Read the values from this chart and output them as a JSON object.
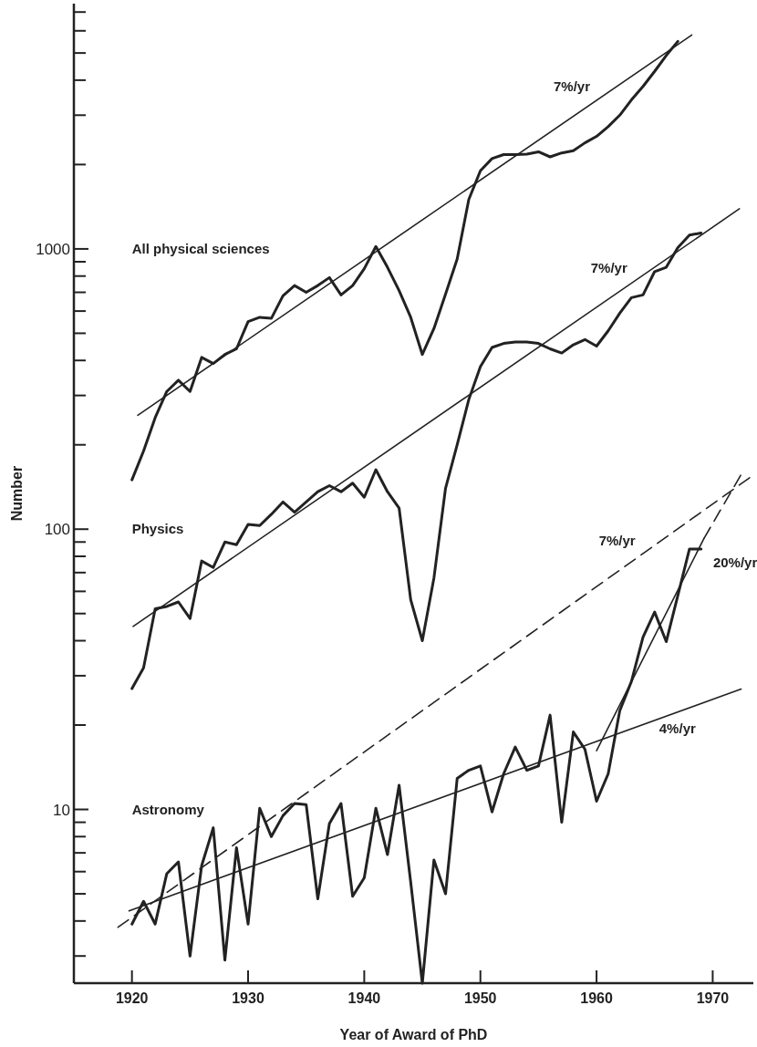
{
  "chart_data": {
    "type": "line",
    "xlabel": "Year of Award of PhD",
    "ylabel": "Number",
    "log": "y",
    "xlim": [
      1915,
      1973.5
    ],
    "xticks": [
      1920,
      1930,
      1940,
      1950,
      1960,
      1970
    ],
    "ylim": [
      2.4,
      7500
    ],
    "yticks": [
      {
        "value": 3,
        "label": null
      },
      {
        "value": 4,
        "label": null
      },
      {
        "value": 5,
        "label": null
      },
      {
        "value": 6,
        "label": null
      },
      {
        "value": 7,
        "label": null
      },
      {
        "value": 8,
        "label": null
      },
      {
        "value": 9,
        "label": null
      },
      10,
      {
        "value": 20,
        "label": null
      },
      {
        "value": 30,
        "label": null
      },
      {
        "value": 40,
        "label": null
      },
      {
        "value": 50,
        "label": null
      },
      {
        "value": 60,
        "label": null
      },
      {
        "value": 70,
        "label": null
      },
      {
        "value": 80,
        "label": null
      },
      {
        "value": 90,
        "label": null
      },
      100,
      {
        "value": 200,
        "label": null
      },
      {
        "value": 300,
        "label": null
      },
      {
        "value": 400,
        "label": null
      },
      {
        "value": 500,
        "label": null
      },
      {
        "value": 600,
        "label": null
      },
      {
        "value": 700,
        "label": null
      },
      {
        "value": 800,
        "label": null
      },
      {
        "value": 900,
        "label": null
      },
      1000,
      {
        "value": 2000,
        "label": null
      },
      {
        "value": 3000,
        "label": null
      },
      {
        "value": 4000,
        "label": null
      },
      {
        "value": 5000,
        "label": null
      },
      {
        "value": 6000,
        "label": null
      },
      {
        "value": 7000,
        "label": null
      }
    ],
    "series": [
      {
        "name": "All physical sciences",
        "color": "#222222",
        "x": [
          1920,
          1921,
          1922,
          1923,
          1924,
          1925,
          1926,
          1927,
          1928,
          1929,
          1930,
          1931,
          1932,
          1933,
          1934,
          1935,
          1936,
          1937,
          1938,
          1939,
          1940,
          1941,
          1942,
          1943,
          1944,
          1945,
          1946,
          1947,
          1948,
          1949,
          1950,
          1951,
          1952,
          1953,
          1954,
          1955,
          1956,
          1957,
          1958,
          1959,
          1960,
          1961,
          1962,
          1963,
          1964,
          1965,
          1966,
          1967
        ],
        "values": [
          150,
          190,
          250,
          310,
          340,
          310,
          410,
          390,
          420,
          440,
          550,
          570,
          565,
          680,
          740,
          700,
          740,
          790,
          685,
          740,
          850,
          1020,
          860,
          710,
          570,
          420,
          520,
          690,
          920,
          1500,
          1900,
          2100,
          2170,
          2170,
          2180,
          2220,
          2130,
          2200,
          2240,
          2390,
          2520,
          2730,
          3000,
          3400,
          3800,
          4300,
          4900,
          5500
        ]
      },
      {
        "name": "7%/yr",
        "color": "#222222",
        "x": [
          1920.5,
          1968.2
        ],
        "values": [
          255,
          5800
        ]
      },
      {
        "name": "Physics",
        "color": "#222222",
        "x": [
          1920,
          1921,
          1922,
          1923,
          1924,
          1925,
          1926,
          1927,
          1928,
          1929,
          1930,
          1931,
          1932,
          1933,
          1934,
          1935,
          1936,
          1937,
          1938,
          1939,
          1940,
          1941,
          1942,
          1943,
          1944,
          1945,
          1946,
          1947,
          1948,
          1949,
          1950,
          1951,
          1952,
          1953,
          1954,
          1955,
          1956,
          1957,
          1958,
          1959,
          1960,
          1961,
          1962,
          1963,
          1964,
          1965,
          1966,
          1967,
          1968,
          1969
        ],
        "values": [
          27,
          32,
          52,
          53,
          55,
          48,
          77,
          73,
          90,
          88,
          104,
          103,
          113,
          125,
          115,
          125,
          136,
          143,
          136,
          146,
          130,
          163,
          136,
          119,
          56,
          40,
          67,
          140,
          200,
          290,
          380,
          445,
          460,
          465,
          465,
          460,
          440,
          425,
          455,
          475,
          450,
          510,
          590,
          670,
          685,
          830,
          860,
          1010,
          1120,
          1140
        ]
      },
      {
        "name": "7%/yr",
        "color": "#222222",
        "x": [
          1920.1,
          1972.3
        ],
        "values": [
          45,
          1390
        ]
      },
      {
        "name": "Astronomy",
        "color": "#222222",
        "x": [
          1920,
          1921,
          1922,
          1923,
          1924,
          1925,
          1926,
          1927,
          1928,
          1929,
          1930,
          1931,
          1932,
          1933,
          1934,
          1935,
          1936,
          1937,
          1938,
          1939,
          1940,
          1941,
          1942,
          1943,
          1944,
          1945,
          1946,
          1947,
          1948,
          1949,
          1950,
          1951,
          1952,
          1953,
          1954,
          1955,
          1956,
          1957,
          1958,
          1959,
          1960,
          1961,
          1962,
          1963,
          1964,
          1965,
          1966,
          1967,
          1968,
          1969
        ],
        "values": [
          3.9,
          4.7,
          3.9,
          5.9,
          6.5,
          3.0,
          6.3,
          8.6,
          2.9,
          7.3,
          3.9,
          10.1,
          8.0,
          9.5,
          10.5,
          10.4,
          4.8,
          8.9,
          10.5,
          4.9,
          5.7,
          10.1,
          6.9,
          12.2,
          5.5,
          2.4,
          6.6,
          5.0,
          12.9,
          13.8,
          14.3,
          9.8,
          13.4,
          16.7,
          13.8,
          14.3,
          21.7,
          9.0,
          18.9,
          16.4,
          10.7,
          13.4,
          22.5,
          28.6,
          41.2,
          50.6,
          39.7,
          58,
          85,
          85
        ]
      },
      {
        "name": "4%/yr",
        "color": "#222222",
        "x": [
          1919.75,
          1972.45
        ],
        "values": [
          4.35,
          26.9
        ]
      },
      {
        "name": "7%/yr",
        "color": "#222222",
        "line_style": "dashed",
        "x": [
          1918.8,
          1973.5
        ],
        "values": [
          3.8,
          156
        ]
      },
      {
        "name": "20%/yr",
        "color": "#222222",
        "x": [
          1960,
          1969.25
        ],
        "values": [
          16.2,
          92.7
        ]
      },
      {
        "color": "#222222",
        "line_style": "dashed",
        "x": [
          1969.25,
          1972.5
        ],
        "values": [
          92.7,
          158
        ]
      }
    ]
  }
}
